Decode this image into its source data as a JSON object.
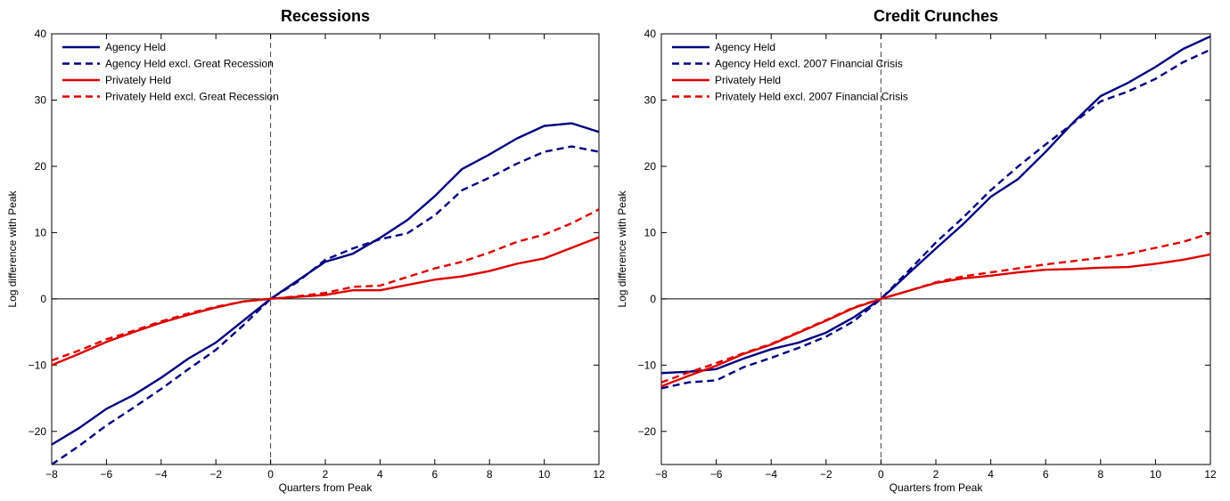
{
  "chart_data": [
    {
      "type": "line",
      "title": "Recessions",
      "xlabel": "Quarters from Peak",
      "ylabel": "Log difference with Peak",
      "xlim": [
        -8,
        12
      ],
      "ylim": [
        -25,
        40
      ],
      "xticks": [
        -8,
        -6,
        -4,
        -2,
        0,
        2,
        4,
        6,
        8,
        10,
        12
      ],
      "yticks": [
        -20,
        -10,
        0,
        10,
        20,
        30,
        40
      ],
      "grid": false,
      "legend_position": "top-left",
      "reference_lines": {
        "horizontal_y": 0,
        "vertical_dashed_x": 0
      },
      "x": [
        -8,
        -7,
        -6,
        -5,
        -4,
        -3,
        -2,
        -1,
        0,
        1,
        2,
        3,
        4,
        5,
        6,
        7,
        8,
        9,
        10,
        11,
        12
      ],
      "series": [
        {
          "name": "Agency Held",
          "color": "#00007F",
          "dash": "solid",
          "values": [
            -22.0,
            -19.5,
            -16.6,
            -14.5,
            -11.9,
            -9.0,
            -6.6,
            -3.3,
            0.0,
            2.8,
            5.6,
            6.8,
            9.2,
            11.9,
            15.5,
            19.6,
            21.8,
            24.2,
            26.1,
            26.5,
            25.2
          ]
        },
        {
          "name": "Agency Held excl. Great Recession",
          "color": "#00007F",
          "dash": "dashed",
          "values": [
            -25.0,
            -22.2,
            -19.1,
            -16.4,
            -13.6,
            -10.6,
            -7.7,
            -4.0,
            0.0,
            2.6,
            5.9,
            7.6,
            9.0,
            9.9,
            12.6,
            16.4,
            18.3,
            20.4,
            22.2,
            23.0,
            22.2
          ]
        },
        {
          "name": "Privately Held",
          "color": "#DD0000",
          "dash": "solid",
          "values": [
            -10.0,
            -8.3,
            -6.5,
            -5.0,
            -3.6,
            -2.4,
            -1.3,
            -0.4,
            0.0,
            0.3,
            0.6,
            1.3,
            1.3,
            2.1,
            2.9,
            3.4,
            4.2,
            5.3,
            6.1,
            7.7,
            9.3
          ]
        },
        {
          "name": "Privately Held excl. Great Recession",
          "color": "#DD0000",
          "dash": "dashed",
          "values": [
            -9.3,
            -7.8,
            -6.1,
            -4.8,
            -3.4,
            -2.2,
            -1.2,
            -0.4,
            0.0,
            0.4,
            0.9,
            1.8,
            2.0,
            3.3,
            4.6,
            5.6,
            7.0,
            8.6,
            9.7,
            11.4,
            13.5
          ]
        }
      ]
    },
    {
      "type": "line",
      "title": "Credit Crunches",
      "xlabel": "Quarters from Peak",
      "ylabel": "Log difference with Peak",
      "xlim": [
        -8,
        12
      ],
      "ylim": [
        -25,
        40
      ],
      "xticks": [
        -8,
        -6,
        -4,
        -2,
        0,
        2,
        4,
        6,
        8,
        10,
        12
      ],
      "yticks": [
        -20,
        -10,
        0,
        10,
        20,
        30,
        40
      ],
      "grid": false,
      "legend_position": "top-left",
      "reference_lines": {
        "horizontal_y": 0,
        "vertical_dashed_x": 0
      },
      "x": [
        -8,
        -7,
        -6,
        -5,
        -4,
        -3,
        -2,
        -1,
        0,
        1,
        2,
        3,
        4,
        5,
        6,
        7,
        8,
        9,
        10,
        11,
        12
      ],
      "series": [
        {
          "name": "Agency Held",
          "color": "#00007F",
          "dash": "solid",
          "values": [
            -11.2,
            -11.0,
            -10.6,
            -9.0,
            -7.6,
            -6.6,
            -5.1,
            -2.8,
            0.0,
            3.8,
            7.6,
            11.3,
            15.4,
            18.1,
            22.2,
            26.6,
            30.6,
            32.6,
            35.0,
            37.7,
            39.6
          ]
        },
        {
          "name": "Agency Held excl. 2007 Financial Crisis",
          "color": "#00007F",
          "dash": "dashed",
          "values": [
            -13.5,
            -12.6,
            -12.3,
            -10.3,
            -8.9,
            -7.4,
            -5.7,
            -3.4,
            0.0,
            4.2,
            8.5,
            12.3,
            16.4,
            20.0,
            23.3,
            26.5,
            29.8,
            31.3,
            33.2,
            35.7,
            37.6
          ]
        },
        {
          "name": "Privately Held",
          "color": "#DD0000",
          "dash": "solid",
          "values": [
            -13.2,
            -11.6,
            -10.1,
            -8.3,
            -6.9,
            -5.1,
            -3.3,
            -1.4,
            0.0,
            1.2,
            2.4,
            3.1,
            3.5,
            4.0,
            4.4,
            4.5,
            4.7,
            4.8,
            5.3,
            5.9,
            6.7
          ]
        },
        {
          "name": "Privately Held excl. 2007 Financial Crisis",
          "color": "#DD0000",
          "dash": "dashed",
          "values": [
            -12.6,
            -11.1,
            -9.7,
            -8.2,
            -6.8,
            -5.0,
            -3.2,
            -1.3,
            0.0,
            1.2,
            2.5,
            3.4,
            4.0,
            4.6,
            5.2,
            5.7,
            6.2,
            6.8,
            7.7,
            8.6,
            9.9
          ]
        }
      ]
    }
  ]
}
